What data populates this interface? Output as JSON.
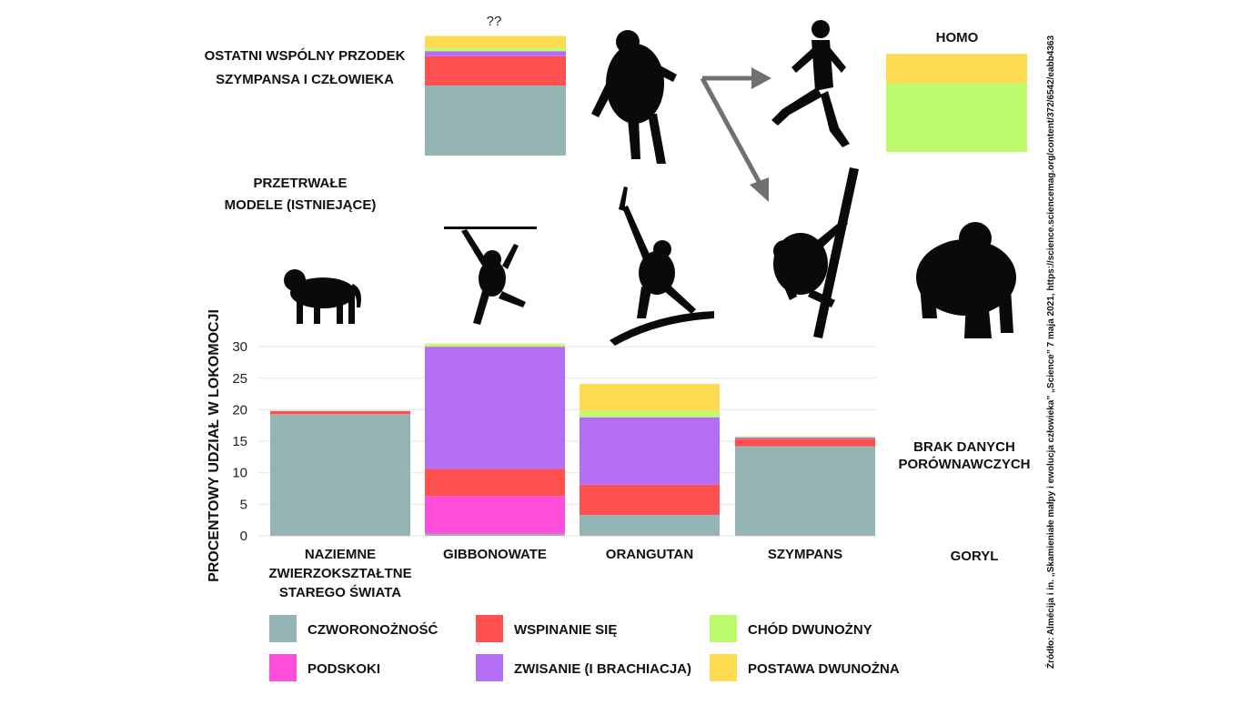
{
  "header": {
    "question_marks": "??",
    "ancestor_label": [
      "OSTATNI WSPÓLNY PRZODEK",
      "SZYMPANSA I CZŁOWIEKA"
    ],
    "living_models_label": [
      "PRZETRWAŁE",
      "MODELE (ISTNIEJĄCE)"
    ],
    "homo_label": "HOMO",
    "no_data_label": [
      "BRAK  DANYCH",
      "PORÓWNAWCZYCH"
    ],
    "gorilla_label": "GORYL"
  },
  "source_note": "Źródło: Almécija i in. „Skamieniałe małpy i ewolucja człowieka” „Science” 7 maja 2021, https://science.sciencemag.org/content/372/6542/eabb4363",
  "colors": {
    "quadrupedalism": "#95b5b4",
    "climbing": "#ff5050",
    "bipedal_walking": "#bdfa6e",
    "leaping": "#ff4ddb",
    "suspension": "#b46ef5",
    "bipedal_posture": "#fddb51",
    "arrow": "#707070",
    "silhouette": "#0a0a0a"
  },
  "chart_data": {
    "type": "bar",
    "stacked": true,
    "ylabel": "PROCENTOWY UDZIAŁ  W LOKOMOCJI",
    "ylim": [
      0,
      30
    ],
    "yticks": [
      "30",
      "25",
      "20",
      "15",
      "10",
      "5",
      "0"
    ],
    "grid": true,
    "categories": [
      [
        "NAZIEMNE",
        "ZWIERZOKSZTAŁTNE",
        "STAREGO ŚWIATA"
      ],
      [
        "GIBBONOWATE"
      ],
      [
        "ORANGUTAN"
      ],
      [
        "SZYMPANS"
      ]
    ],
    "series": [
      {
        "name": "CZWORONOŻNOŚĆ",
        "key": "quadrupedalism",
        "values": [
          19.3,
          0.3,
          3.3,
          14.2
        ]
      },
      {
        "name": "PODSKOKI",
        "key": "leaping",
        "values": [
          0,
          6.0,
          0,
          0
        ]
      },
      {
        "name": "WSPINANIE SIĘ",
        "key": "climbing",
        "values": [
          0.5,
          4.3,
          4.8,
          1.2
        ]
      },
      {
        "name": "ZWISANIE (I BRACHIACJA)",
        "key": "suspension",
        "values": [
          0,
          19.4,
          10.7,
          0.2
        ]
      },
      {
        "name": "CHÓD DWUNOŻNY",
        "key": "bipedal_walking",
        "values": [
          0,
          0.4,
          1.0,
          0.2
        ]
      },
      {
        "name": "POSTAWA DWUNOŻNA",
        "key": "bipedal_posture",
        "values": [
          0,
          0.1,
          4.3,
          0
        ]
      }
    ],
    "ancestor_bar": {
      "label": "??",
      "values": {
        "quadrupedalism": 11.0,
        "leaping": 0,
        "climbing": 4.6,
        "suspension": 0.8,
        "bipedal_walking": 0.5,
        "bipedal_posture": 1.9
      }
    },
    "homo_bar": {
      "label": "HOMO",
      "values": {
        "quadrupedalism": 0,
        "leaping": 0,
        "climbing": 0,
        "suspension": 0,
        "bipedal_walking": 10.8,
        "bipedal_posture": 4.6
      }
    },
    "legend": {
      "placement": "bottom",
      "items": [
        {
          "label": "CZWORONOŻNOŚĆ",
          "key": "quadrupedalism"
        },
        {
          "label": "WSPINANIE SIĘ",
          "key": "climbing"
        },
        {
          "label": "CHÓD DWUNOŻNY",
          "key": "bipedal_walking"
        },
        {
          "label": "PODSKOKI",
          "key": "leaping"
        },
        {
          "label": "ZWISANIE (I BRACHIACJA)",
          "key": "suspension"
        },
        {
          "label": "POSTAWA DWUNOŻNA",
          "key": "bipedal_posture"
        }
      ]
    }
  }
}
